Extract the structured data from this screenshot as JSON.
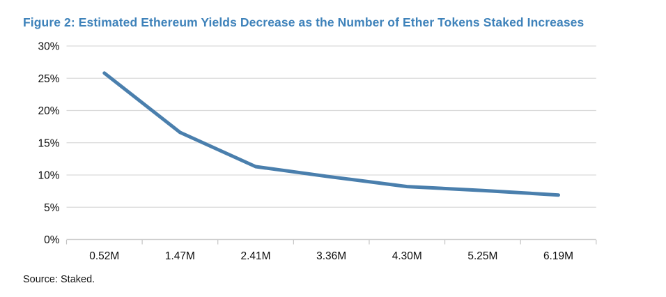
{
  "figure": {
    "title": "Figure 2: Estimated Ethereum Yields Decrease as the Number of Ether Tokens Staked Increases",
    "title_color": "#3e82ba",
    "source_note": "Source: Staked."
  },
  "chart_data": {
    "type": "line",
    "title": "Figure 2: Estimated Ethereum Yields Decrease as the Number of Ether Tokens Staked Increases",
    "categories": [
      "0.52M",
      "1.47M",
      "2.41M",
      "3.36M",
      "4.30M",
      "5.25M",
      "6.19M"
    ],
    "values": [
      25.8,
      16.6,
      11.3,
      9.7,
      8.2,
      7.6,
      6.9
    ],
    "xlabel": "",
    "ylabel": "",
    "ylim": [
      0,
      30
    ],
    "ytick_step": 5,
    "ytick_labels": [
      "0%",
      "5%",
      "10%",
      "15%",
      "20%",
      "25%",
      "30%"
    ],
    "ytick_format": "percent",
    "grid": "horizontal",
    "legend": "none",
    "line_color": "#4a7fad",
    "line_width": 5,
    "gridline_color": "#dadada",
    "axis_color": "#cfcfcf",
    "tick_color": "#c4c4c4",
    "source": "Source: Staked."
  }
}
